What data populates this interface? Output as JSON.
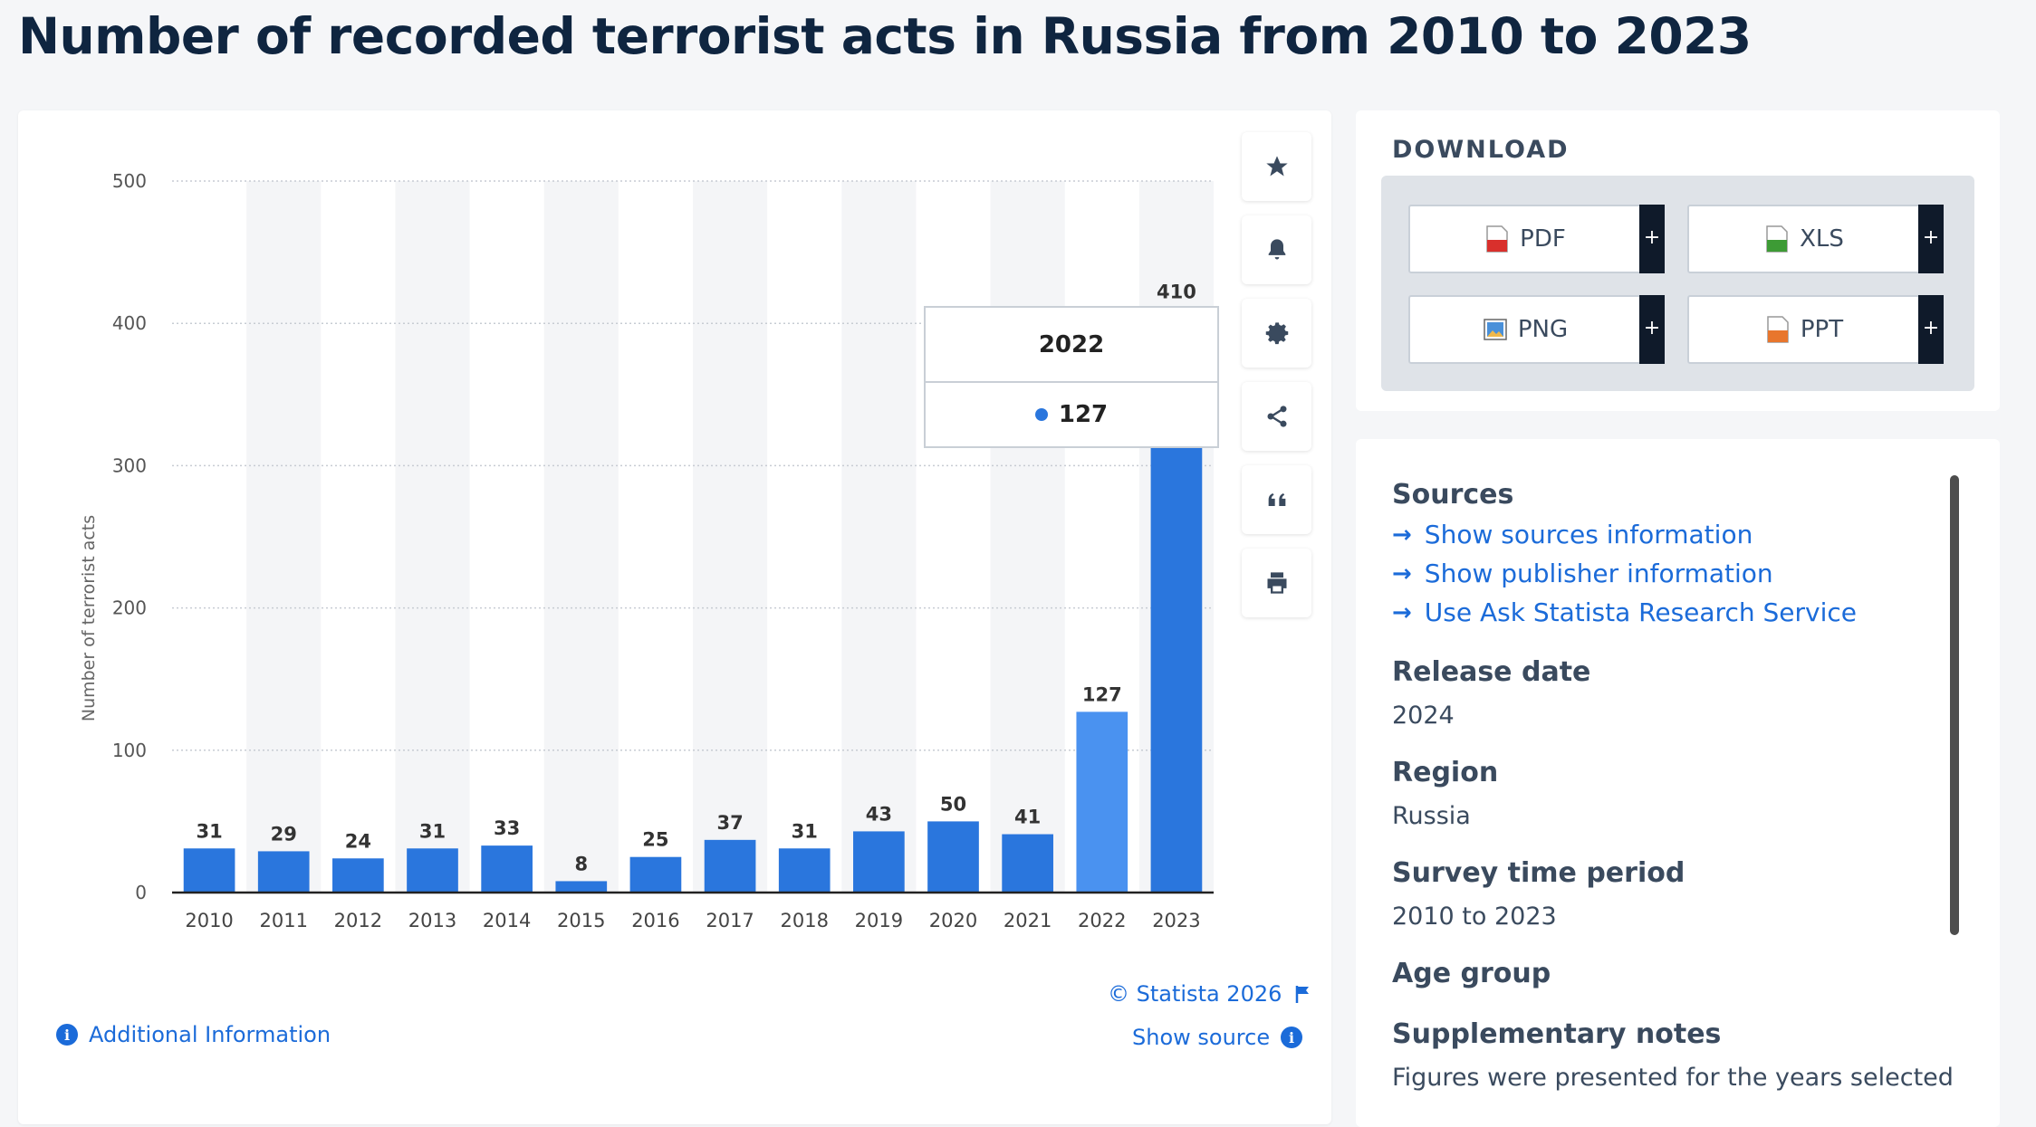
{
  "page": {
    "title": "Number of recorded terrorist acts in Russia from 2010 to 2023"
  },
  "chart_data": {
    "type": "bar",
    "categories": [
      "2010",
      "2011",
      "2012",
      "2013",
      "2014",
      "2015",
      "2016",
      "2017",
      "2018",
      "2019",
      "2020",
      "2021",
      "2022",
      "2023"
    ],
    "values": [
      31,
      29,
      24,
      31,
      33,
      8,
      25,
      37,
      31,
      43,
      50,
      41,
      127,
      410
    ],
    "ylabel": "Number of terrorist acts",
    "xlabel": "",
    "ylim": [
      0,
      500
    ],
    "yticks": [
      0,
      100,
      200,
      300,
      400,
      500
    ],
    "grid": true,
    "highlighted_category": "2022",
    "bar_color": "#2a76dd",
    "highlight_color": "#4a92f0"
  },
  "tooltip": {
    "category": "2022",
    "value": "127"
  },
  "toolbar": {
    "icons": [
      "star-icon",
      "bell-icon",
      "gear-icon",
      "share-icon",
      "quote-icon",
      "print-icon"
    ]
  },
  "chart_footer": {
    "copyright": "© Statista 2026",
    "show_source": "Show source",
    "additional_info": "Additional Information"
  },
  "download": {
    "title": "DOWNLOAD",
    "buttons": [
      {
        "label": "PDF",
        "plus": "+"
      },
      {
        "label": "XLS",
        "plus": "+"
      },
      {
        "label": "PNG",
        "plus": "+"
      },
      {
        "label": "PPT",
        "plus": "+"
      }
    ]
  },
  "details": {
    "sources_heading": "Sources",
    "links": [
      "Show sources information",
      "Show publisher information",
      "Use Ask Statista Research Service"
    ],
    "release_date_heading": "Release date",
    "release_date": "2024",
    "region_heading": "Region",
    "region": "Russia",
    "survey_period_heading": "Survey time period",
    "survey_period": "2010 to 2023",
    "age_group_heading": "Age group",
    "supplementary_heading": "Supplementary notes",
    "supplementary_text": "Figures were presented for the years selected"
  },
  "colors": {
    "accent": "#1b6bd9",
    "bar": "#2a76dd",
    "bar_highlight": "#4a92f0",
    "title": "#0f2540"
  }
}
